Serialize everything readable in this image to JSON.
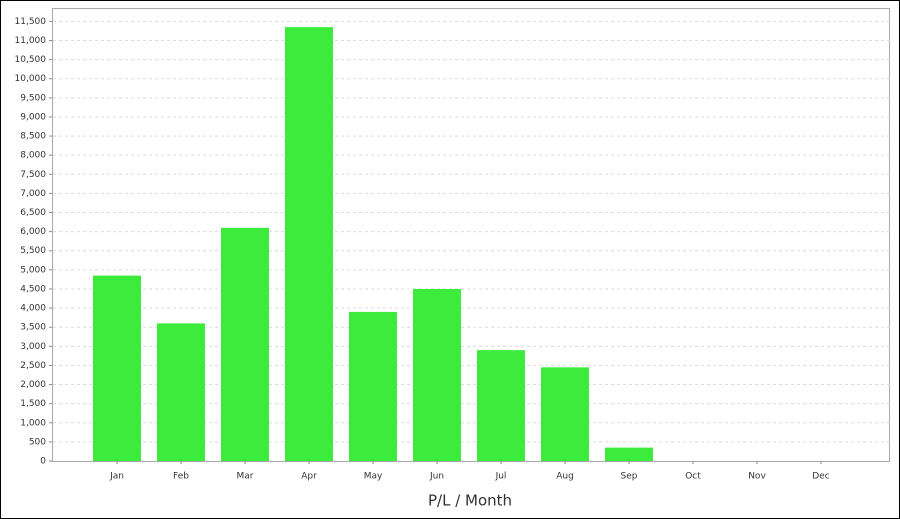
{
  "chart_data": {
    "type": "bar",
    "x_label": "P/L / Month",
    "categories": [
      "Jan",
      "Feb",
      "Mar",
      "Apr",
      "May",
      "Jun",
      "Jul",
      "Aug",
      "Sep",
      "Oct",
      "Nov",
      "Dec"
    ],
    "values": [
      4850,
      3600,
      6100,
      11350,
      3900,
      4500,
      2900,
      2450,
      350,
      0,
      0,
      0
    ],
    "color": "#3deb3d",
    "ylim": [
      0,
      11850
    ],
    "yticks": [
      0,
      500,
      {
        "value": 1000,
        "label": "1,000"
      },
      {
        "value": 1500,
        "label": "1,500"
      },
      {
        "value": 2000,
        "label": "2,000"
      },
      {
        "value": 2500,
        "label": "2,500"
      },
      {
        "value": 3000,
        "label": "3,000"
      },
      {
        "value": 3500,
        "label": "3,500"
      },
      {
        "value": 4000,
        "label": "4,000"
      },
      {
        "value": 4500,
        "label": "4,500"
      },
      {
        "value": 5000,
        "label": "5,000"
      },
      {
        "value": 5500,
        "label": "5,500"
      },
      {
        "value": 6000,
        "label": "6,000"
      },
      {
        "value": 6500,
        "label": "6,500"
      },
      {
        "value": 7000,
        "label": "7,000"
      },
      {
        "value": 7500,
        "label": "7,500"
      },
      {
        "value": 8000,
        "label": "8,000"
      },
      {
        "value": 8500,
        "label": "8,500"
      },
      {
        "value": 9000,
        "label": "9,000"
      },
      {
        "value": 9500,
        "label": "9,500"
      },
      {
        "value": 10000,
        "label": "10,000"
      },
      {
        "value": 10500,
        "label": "10,500"
      },
      {
        "value": 11000,
        "label": "11,000"
      },
      {
        "value": 11500,
        "label": "11,500"
      }
    ],
    "grid": true
  }
}
